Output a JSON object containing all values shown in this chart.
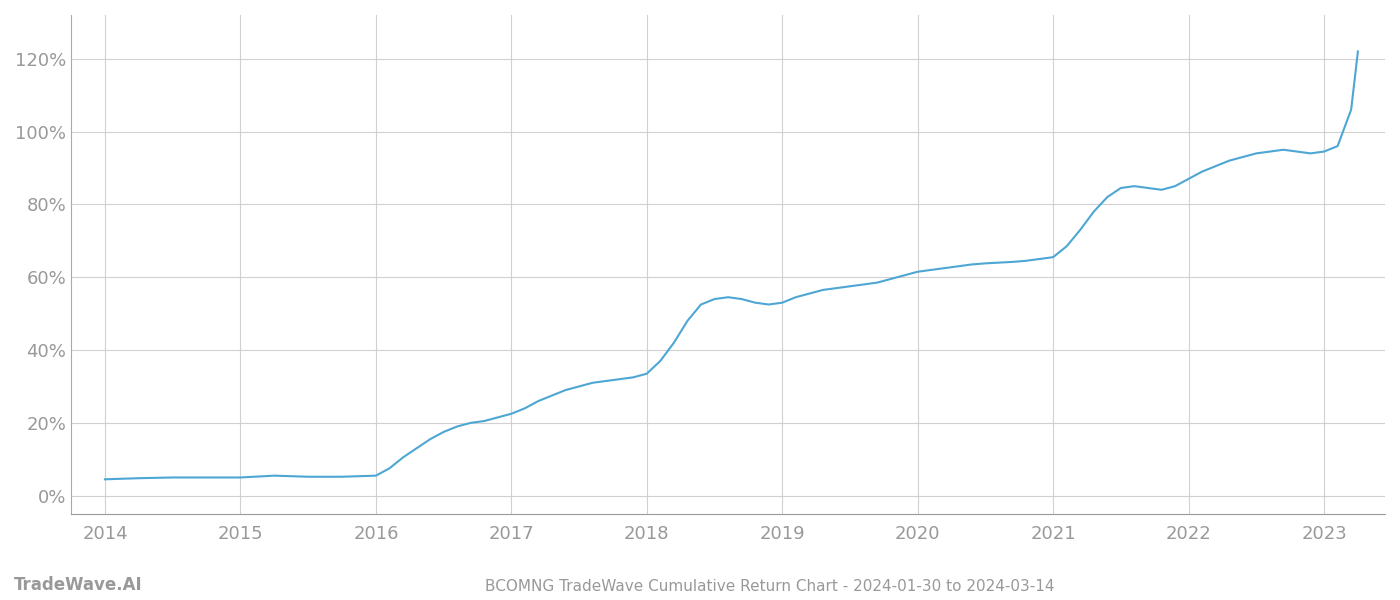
{
  "title": "BCOMNG TradeWave Cumulative Return Chart - 2024-01-30 to 2024-03-14",
  "watermark": "TradeWave.AI",
  "line_color": "#4da6d4",
  "background_color": "#ffffff",
  "grid_color": "#cccccc",
  "x_years": [
    2014,
    2015,
    2016,
    2017,
    2018,
    2019,
    2020,
    2021,
    2022,
    2023
  ],
  "x_data": [
    2014.0,
    2014.25,
    2014.5,
    2014.75,
    2015.0,
    2015.25,
    2015.5,
    2015.75,
    2016.0,
    2016.1,
    2016.2,
    2016.3,
    2016.4,
    2016.5,
    2016.6,
    2016.7,
    2016.8,
    2016.9,
    2017.0,
    2017.1,
    2017.2,
    2017.3,
    2017.4,
    2017.5,
    2017.6,
    2017.7,
    2017.8,
    2017.9,
    2018.0,
    2018.1,
    2018.2,
    2018.3,
    2018.4,
    2018.5,
    2018.6,
    2018.7,
    2018.8,
    2018.9,
    2019.0,
    2019.1,
    2019.2,
    2019.3,
    2019.4,
    2019.5,
    2019.6,
    2019.7,
    2019.8,
    2019.9,
    2020.0,
    2020.1,
    2020.2,
    2020.3,
    2020.4,
    2020.5,
    2020.6,
    2020.7,
    2020.8,
    2020.9,
    2021.0,
    2021.1,
    2021.2,
    2021.3,
    2021.4,
    2021.5,
    2021.6,
    2021.7,
    2021.8,
    2021.9,
    2022.0,
    2022.1,
    2022.2,
    2022.3,
    2022.4,
    2022.5,
    2022.6,
    2022.7,
    2022.8,
    2022.9,
    2023.0,
    2023.1,
    2023.2,
    2023.25
  ],
  "y_data": [
    4.5,
    4.8,
    5.0,
    5.0,
    5.0,
    5.5,
    5.2,
    5.2,
    5.5,
    7.5,
    10.5,
    13.0,
    15.5,
    17.5,
    19.0,
    20.0,
    20.5,
    21.5,
    22.5,
    24.0,
    26.0,
    27.5,
    29.0,
    30.0,
    31.0,
    31.5,
    32.0,
    32.5,
    33.5,
    37.0,
    42.0,
    48.0,
    52.5,
    54.0,
    54.5,
    54.0,
    53.0,
    52.5,
    53.0,
    54.5,
    55.5,
    56.5,
    57.0,
    57.5,
    58.0,
    58.5,
    59.5,
    60.5,
    61.5,
    62.0,
    62.5,
    63.0,
    63.5,
    63.8,
    64.0,
    64.2,
    64.5,
    65.0,
    65.5,
    68.5,
    73.0,
    78.0,
    82.0,
    84.5,
    85.0,
    84.5,
    84.0,
    85.0,
    87.0,
    89.0,
    90.5,
    92.0,
    93.0,
    94.0,
    94.5,
    95.0,
    94.5,
    94.0,
    94.5,
    96.0,
    106.0,
    122.0
  ],
  "ylim": [
    -5,
    132
  ],
  "yticks": [
    0,
    20,
    40,
    60,
    80,
    100,
    120
  ],
  "xlim": [
    2013.75,
    2023.45
  ],
  "title_fontsize": 11,
  "watermark_fontsize": 12,
  "tick_label_color": "#999999",
  "tick_fontsize": 13,
  "line_width": 1.5,
  "left_spine_color": "#aaaaaa"
}
